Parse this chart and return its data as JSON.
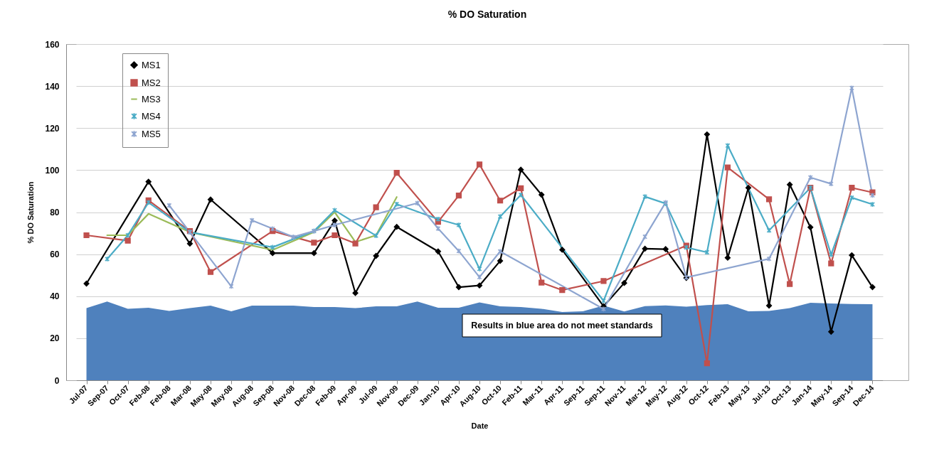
{
  "chart_data": {
    "type": "line",
    "title": "% DO Saturation",
    "xlabel": "Date",
    "ylabel": "% DO Saturation",
    "categories": [
      "Jul-07",
      "Sep-07",
      "Oct-07",
      "Feb-08",
      "Feb-08",
      "Mar-08",
      "May-08",
      "May-08",
      "Aug-08",
      "Sep-08",
      "Nov-08",
      "Dec-08",
      "Feb-09",
      "Apr-09",
      "Jul-09",
      "Nov-09",
      "Dec-09",
      "Jan-10",
      "Apr-10",
      "Aug-10",
      "Oct-10",
      "Feb-11",
      "Mar-11",
      "Apr-11",
      "Sep-11",
      "Sep-11",
      "Nov-11",
      "Mar-12",
      "May-12",
      "Aug-12",
      "Oct-12",
      "Feb-13",
      "May-13",
      "Jul-13",
      "Oct-13",
      "Jan-14",
      "May-14",
      "Sep-14",
      "Dec-14"
    ],
    "ylim": [
      0,
      160
    ],
    "yticks": [
      0,
      20,
      40,
      60,
      80,
      100,
      120,
      140,
      160
    ],
    "grid": "y",
    "legend": "top left",
    "series": [
      {
        "type": "area",
        "color": "#4f81bd",
        "values": [
          34.3,
          37.5,
          34,
          34.5,
          33,
          34.3,
          35.5,
          32.8,
          35.5,
          35.5,
          35.5,
          34.8,
          34.8,
          34.3,
          35.2,
          35.2,
          37.5,
          34.5,
          34.5,
          37,
          35.2,
          34.8,
          34,
          32.5,
          32.8,
          35.5,
          32.7,
          35.3,
          35.6,
          35,
          35.8,
          36.2,
          32.8,
          33,
          34.3,
          36.9,
          36.5,
          36.3,
          36.2
        ]
      },
      {
        "name": "MS1",
        "color": "#000000",
        "marker": "diamond",
        "values": [
          46,
          null,
          null,
          94.5,
          null,
          65,
          86,
          null,
          null,
          60.5,
          null,
          60.5,
          76,
          41.5,
          59.2,
          73,
          null,
          61.3,
          44.3,
          45.1,
          56.8,
          100.2,
          88.3,
          62.1,
          null,
          35.2,
          46.3,
          62.6,
          62.4,
          48.7,
          117,
          58.3,
          91.6,
          35.5,
          93.1,
          72.8,
          23.1,
          59.5,
          44.3
        ]
      },
      {
        "name": "MS2",
        "color": "#c0504d",
        "marker": "square",
        "values": [
          69,
          null,
          66.4,
          85.6,
          null,
          71,
          51.5,
          null,
          null,
          71,
          null,
          65.5,
          69,
          65.1,
          82.3,
          98.7,
          null,
          75.4,
          87.9,
          102.7,
          85.5,
          91.4,
          46.5,
          42.9,
          null,
          47.2,
          null,
          null,
          null,
          64.1,
          8.1,
          101.3,
          null,
          86.1,
          45.8,
          91.6,
          55.6,
          91.6,
          89.4
        ]
      },
      {
        "name": "MS3",
        "color": "#9bbb59",
        "marker": "none",
        "values": [
          null,
          69,
          69,
          79.2,
          null,
          70.5,
          null,
          null,
          null,
          62,
          null,
          70.5,
          80,
          65.8,
          69,
          87.2,
          null,
          null,
          null,
          null,
          null,
          null,
          null,
          null,
          null,
          null,
          null,
          null,
          null,
          null,
          null,
          null,
          null,
          null,
          null,
          null,
          null,
          null,
          null
        ]
      },
      {
        "name": "MS4",
        "color": "#4bacc6",
        "marker": "cross",
        "values": [
          null,
          57.7,
          69,
          84.6,
          null,
          70.5,
          null,
          null,
          null,
          63.3,
          null,
          71,
          80.9,
          null,
          68.8,
          83.8,
          null,
          76.7,
          73.9,
          53,
          77.9,
          88.2,
          null,
          null,
          null,
          37.8,
          null,
          87.4,
          84.1,
          63.2,
          60.9,
          111.7,
          null,
          71.3,
          null,
          91.6,
          59.8,
          86.9,
          83.7
        ]
      },
      {
        "name": "MS5",
        "color": "#8ea5d0",
        "marker": "cross",
        "values": [
          null,
          null,
          null,
          null,
          83.2,
          70.5,
          null,
          44.7,
          76.1,
          72.1,
          68.2,
          71,
          73.9,
          null,
          null,
          null,
          84.3,
          72.2,
          61.5,
          49.1,
          61.3,
          null,
          null,
          null,
          null,
          33.9,
          null,
          68.3,
          84.6,
          48.9,
          null,
          null,
          null,
          57.8,
          null,
          96.5,
          93.5,
          139.1,
          88
        ]
      }
    ],
    "annotations": [
      "Results in blue area do not meet standards"
    ]
  }
}
